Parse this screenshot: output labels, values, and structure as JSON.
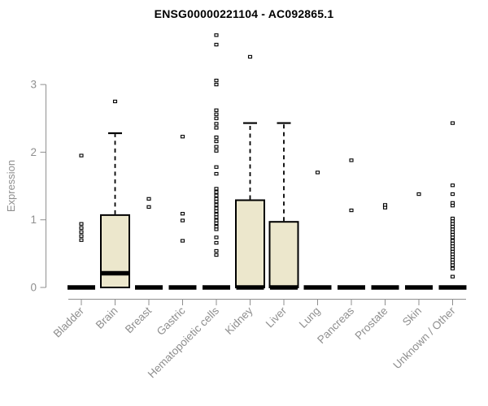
{
  "colors": {
    "background": "#ffffff",
    "box_fill": "#ece7cc",
    "box_stroke": "#000000",
    "axis": "#8f8f8f",
    "title": "#000000"
  },
  "chart_data": {
    "type": "boxplot",
    "title": "ENSG00000221104 - AC092865.1",
    "ylabel": "Expression",
    "xlabel": "",
    "yticks": [
      0,
      1,
      2,
      3
    ],
    "ylim": [
      0,
      3.85
    ],
    "grid": false,
    "legend": false,
    "categories": [
      "Bladder",
      "Brain",
      "Breast",
      "Gastric",
      "Hematopoietic cells",
      "Kidney",
      "Liver",
      "Lung",
      "Pancreas",
      "Prostate",
      "Skin",
      "Unknown / Other"
    ],
    "boxes": [
      {
        "category": "Bladder",
        "q1": 0,
        "median": 0,
        "q3": 0,
        "whisker_low": 0,
        "whisker_high": 0,
        "outliers": [
          0.7,
          0.76,
          0.82,
          0.88,
          0.94,
          1.95
        ]
      },
      {
        "category": "Brain",
        "q1": 0,
        "median": 0.21,
        "q3": 1.07,
        "whisker_low": 0,
        "whisker_high": 2.28,
        "outliers": [
          2.75
        ]
      },
      {
        "category": "Breast",
        "q1": 0,
        "median": 0,
        "q3": 0,
        "whisker_low": 0,
        "whisker_high": 0,
        "outliers": [
          1.19,
          1.31
        ]
      },
      {
        "category": "Gastric",
        "q1": 0,
        "median": 0,
        "q3": 0,
        "whisker_low": 0,
        "whisker_high": 0,
        "outliers": [
          0.69,
          0.99,
          1.09,
          2.23
        ]
      },
      {
        "category": "Hematopoietic cells",
        "q1": 0,
        "median": 0,
        "q3": 0,
        "whisker_low": 0,
        "whisker_high": 0,
        "outliers": [
          0.48,
          0.54,
          0.66,
          0.74,
          0.86,
          0.9,
          0.95,
          0.99,
          1.04,
          1.08,
          1.13,
          1.17,
          1.22,
          1.27,
          1.31,
          1.36,
          1.41,
          1.46,
          1.68,
          1.78,
          2.02,
          2.08,
          2.16,
          2.22,
          2.36,
          2.42,
          2.5,
          2.56,
          2.62,
          3.0,
          3.06,
          3.59,
          3.73
        ]
      },
      {
        "category": "Kidney",
        "q1": 0,
        "median": 0,
        "q3": 1.29,
        "whisker_low": 0,
        "whisker_high": 2.43,
        "outliers": [
          3.41
        ]
      },
      {
        "category": "Liver",
        "q1": 0,
        "median": 0,
        "q3": 0.97,
        "whisker_low": 0,
        "whisker_high": 2.43,
        "outliers": []
      },
      {
        "category": "Lung",
        "q1": 0,
        "median": 0,
        "q3": 0,
        "whisker_low": 0,
        "whisker_high": 0,
        "outliers": [
          1.7
        ]
      },
      {
        "category": "Pancreas",
        "q1": 0,
        "median": 0,
        "q3": 0,
        "whisker_low": 0,
        "whisker_high": 0,
        "outliers": [
          1.14,
          1.88
        ]
      },
      {
        "category": "Prostate",
        "q1": 0,
        "median": 0,
        "q3": 0,
        "whisker_low": 0,
        "whisker_high": 0,
        "outliers": [
          1.18,
          1.22
        ]
      },
      {
        "category": "Skin",
        "q1": 0,
        "median": 0,
        "q3": 0,
        "whisker_low": 0,
        "whisker_high": 0,
        "outliers": [
          1.38
        ]
      },
      {
        "category": "Unknown / Other",
        "q1": 0,
        "median": 0,
        "q3": 0,
        "whisker_low": 0,
        "whisker_high": 0,
        "outliers": [
          0.16,
          0.28,
          0.33,
          0.37,
          0.41,
          0.45,
          0.49,
          0.53,
          0.57,
          0.61,
          0.65,
          0.69,
          0.74,
          0.78,
          0.82,
          0.86,
          0.9,
          0.94,
          0.98,
          1.02,
          1.21,
          1.25,
          1.38,
          1.51,
          2.43
        ]
      }
    ]
  }
}
